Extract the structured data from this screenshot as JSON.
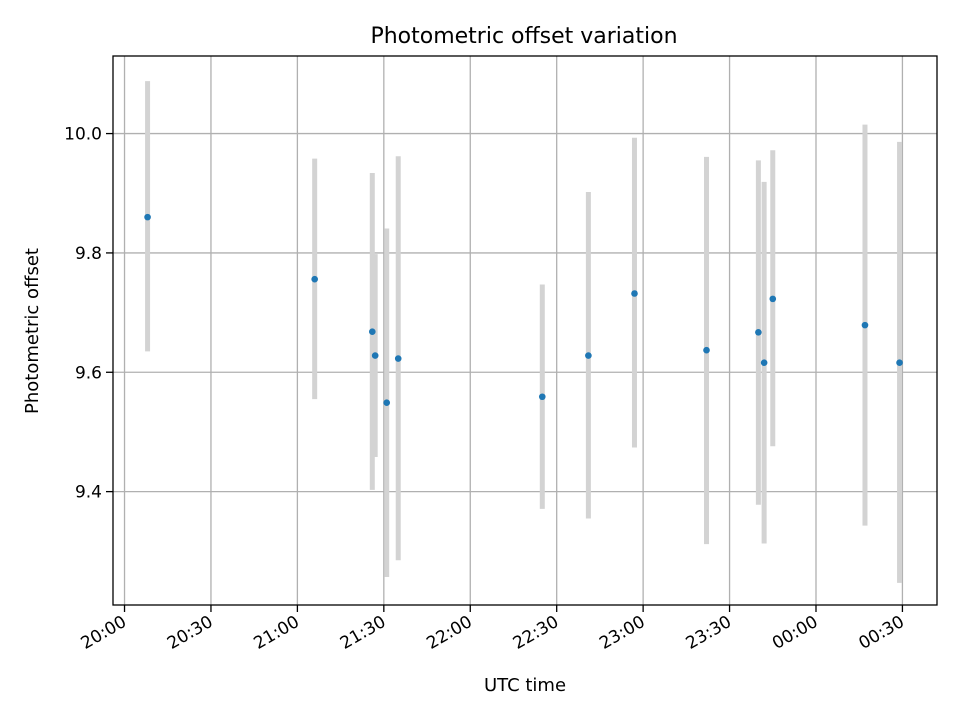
{
  "chart_data": {
    "type": "scatter",
    "title": "Photometric offset variation",
    "xlabel": "UTC time",
    "ylabel": "Photometric offset",
    "grid": true,
    "x_ticks": [
      "20:00",
      "20:30",
      "21:00",
      "21:30",
      "22:00",
      "22:30",
      "23:00",
      "23:30",
      "00:00",
      "00:30"
    ],
    "y_ticks": [
      "9.4",
      "9.6",
      "9.8",
      "10.0"
    ],
    "xlim": [
      "19:56",
      "00:42"
    ],
    "ylim": [
      9.21,
      10.13
    ],
    "x_axis_date": "next day after 23:59 continues as 00:00",
    "colors": {
      "point": "#1f77b4",
      "errorbar": "#d3d3d3",
      "grid": "#b0b0b0"
    },
    "points": [
      {
        "time": "20:08",
        "y": 9.86,
        "err_low": 9.635,
        "err_high": 10.088
      },
      {
        "time": "21:06",
        "y": 9.756,
        "err_low": 9.555,
        "err_high": 9.958
      },
      {
        "time": "21:26",
        "y": 9.668,
        "err_low": 9.403,
        "err_high": 9.934
      },
      {
        "time": "21:27",
        "y": 9.628,
        "err_low": 9.458,
        "err_high": 9.798
      },
      {
        "time": "21:31",
        "y": 9.549,
        "err_low": 9.257,
        "err_high": 9.841
      },
      {
        "time": "21:35",
        "y": 9.623,
        "err_low": 9.285,
        "err_high": 9.962
      },
      {
        "time": "22:25",
        "y": 9.559,
        "err_low": 9.371,
        "err_high": 9.747
      },
      {
        "time": "22:41",
        "y": 9.628,
        "err_low": 9.355,
        "err_high": 9.902
      },
      {
        "time": "22:57",
        "y": 9.732,
        "err_low": 9.474,
        "err_high": 9.993
      },
      {
        "time": "23:22",
        "y": 9.637,
        "err_low": 9.312,
        "err_high": 9.961
      },
      {
        "time": "23:40",
        "y": 9.667,
        "err_low": 9.378,
        "err_high": 9.955
      },
      {
        "time": "23:42",
        "y": 9.616,
        "err_low": 9.313,
        "err_high": 9.919
      },
      {
        "time": "23:45",
        "y": 9.723,
        "err_low": 9.476,
        "err_high": 9.972
      },
      {
        "time": "00:17",
        "y": 9.679,
        "err_low": 9.343,
        "err_high": 10.015
      },
      {
        "time": "00:29",
        "y": 9.616,
        "err_low": 9.247,
        "err_high": 9.986
      }
    ]
  }
}
